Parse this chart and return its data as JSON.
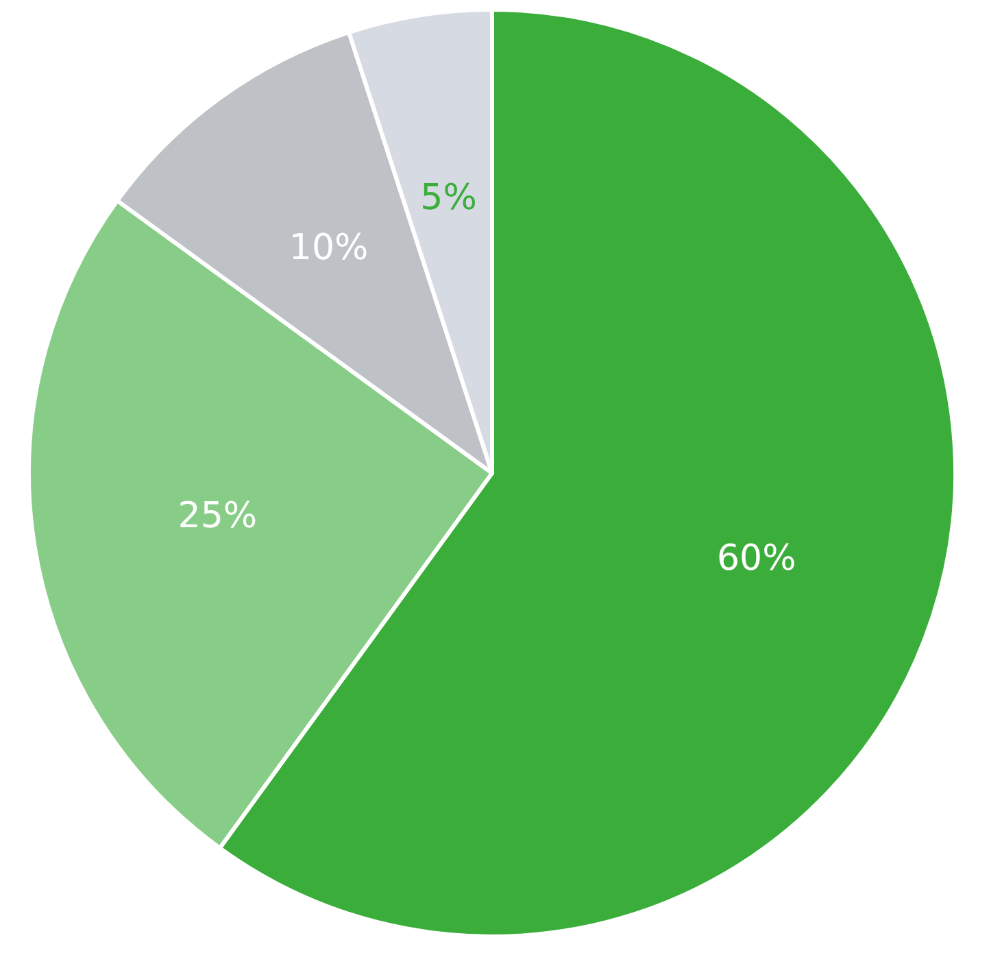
{
  "chart_data": {
    "type": "pie",
    "categories": [
      null,
      null,
      null,
      null
    ],
    "values": [
      60,
      25,
      10,
      5
    ],
    "colors": [
      "#3aad3a",
      "#88cd87",
      "#bec2c6",
      "#d6dae2"
    ],
    "value_labels": [
      "60%",
      "25%",
      "10%",
      "5%"
    ]
  }
}
